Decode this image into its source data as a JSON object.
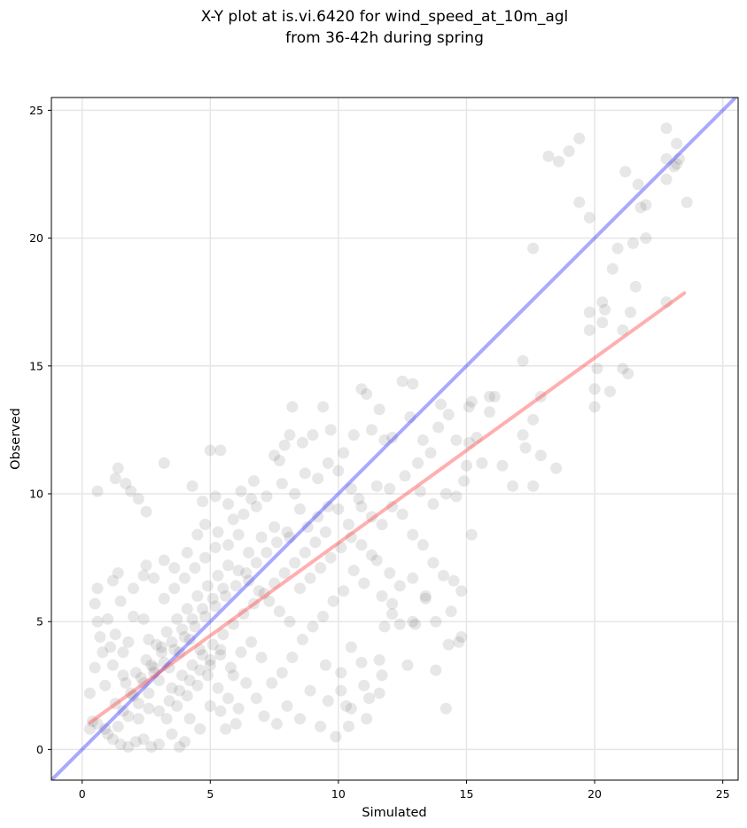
{
  "chart_data": {
    "type": "scatter",
    "title_line1": "X-Y plot at is.vi.6420 for wind_speed_at_10m_agl",
    "title_line2": "from 36-42h during spring",
    "xlabel": "Simulated",
    "ylabel": "Observed",
    "xlim": [
      -1.2,
      25.6
    ],
    "ylim": [
      -1.2,
      25.5
    ],
    "xticks": [
      0,
      5,
      10,
      15,
      20,
      25
    ],
    "yticks": [
      0,
      5,
      10,
      15,
      20,
      25
    ],
    "grid": true,
    "point_color": "#555555",
    "identity_line_color": "#3333ff",
    "fit_line_color": "#ff4d4d",
    "identity_line": {
      "x": [
        -1.2,
        25.6
      ],
      "y": [
        -1.2,
        25.6
      ]
    },
    "fit_line": {
      "x": [
        0.3,
        23.5
      ],
      "y": [
        1.05,
        17.85
      ]
    },
    "points": [
      [
        0.6,
        10.1
      ],
      [
        1.3,
        10.6
      ],
      [
        1.4,
        11.0
      ],
      [
        1.7,
        10.4
      ],
      [
        1.9,
        10.1
      ],
      [
        2.2,
        9.8
      ],
      [
        2.5,
        9.3
      ],
      [
        3.2,
        11.2
      ],
      [
        4.3,
        10.3
      ],
      [
        4.7,
        9.7
      ],
      [
        5.0,
        11.7
      ],
      [
        5.4,
        11.7
      ],
      [
        5.2,
        9.9
      ],
      [
        5.7,
        9.6
      ],
      [
        6.2,
        10.1
      ],
      [
        6.6,
        9.8
      ],
      [
        7.5,
        11.5
      ],
      [
        7.7,
        11.3
      ],
      [
        7.9,
        11.9
      ],
      [
        8.1,
        12.3
      ],
      [
        8.6,
        12.0
      ],
      [
        8.2,
        13.4
      ],
      [
        9.0,
        12.3
      ],
      [
        9.4,
        13.4
      ],
      [
        9.7,
        12.5
      ],
      [
        10.2,
        11.6
      ],
      [
        10.6,
        12.3
      ],
      [
        10.9,
        14.1
      ],
      [
        11.1,
        13.9
      ],
      [
        11.3,
        12.5
      ],
      [
        11.6,
        13.3
      ],
      [
        11.8,
        12.1
      ],
      [
        12.1,
        12.2
      ],
      [
        12.5,
        14.4
      ],
      [
        12.9,
        14.3
      ],
      [
        12.8,
        13.0
      ],
      [
        13.3,
        12.1
      ],
      [
        13.9,
        12.6
      ],
      [
        14.0,
        13.5
      ],
      [
        14.3,
        13.1
      ],
      [
        14.6,
        12.1
      ],
      [
        15.1,
        13.4
      ],
      [
        15.2,
        13.6
      ],
      [
        15.4,
        12.2
      ],
      [
        15.1,
        12.0
      ],
      [
        15.0,
        11.1
      ],
      [
        15.6,
        11.2
      ],
      [
        15.9,
        13.8
      ],
      [
        16.1,
        13.8
      ],
      [
        15.9,
        13.2
      ],
      [
        16.4,
        11.1
      ],
      [
        16.8,
        10.3
      ],
      [
        17.2,
        12.3
      ],
      [
        17.3,
        11.8
      ],
      [
        17.6,
        12.9
      ],
      [
        17.6,
        10.3
      ],
      [
        17.9,
        11.5
      ],
      [
        18.5,
        11.0
      ],
      [
        17.9,
        13.8
      ],
      [
        17.2,
        15.2
      ],
      [
        17.6,
        19.6
      ],
      [
        18.2,
        23.2
      ],
      [
        18.6,
        23.0
      ],
      [
        19.0,
        23.4
      ],
      [
        19.4,
        23.9
      ],
      [
        19.4,
        21.4
      ],
      [
        19.8,
        20.8
      ],
      [
        19.8,
        17.1
      ],
      [
        19.8,
        16.4
      ],
      [
        20.0,
        14.1
      ],
      [
        20.0,
        13.4
      ],
      [
        20.1,
        14.9
      ],
      [
        20.3,
        16.7
      ],
      [
        20.3,
        17.5
      ],
      [
        20.4,
        17.2
      ],
      [
        20.6,
        14.0
      ],
      [
        20.7,
        18.8
      ],
      [
        20.9,
        19.6
      ],
      [
        21.1,
        16.4
      ],
      [
        21.1,
        14.9
      ],
      [
        21.3,
        14.7
      ],
      [
        21.2,
        22.6
      ],
      [
        21.4,
        17.1
      ],
      [
        21.5,
        19.8
      ],
      [
        21.6,
        18.1
      ],
      [
        21.7,
        22.1
      ],
      [
        21.8,
        21.2
      ],
      [
        22.0,
        20.0
      ],
      [
        22.0,
        21.3
      ],
      [
        22.8,
        24.3
      ],
      [
        22.8,
        23.1
      ],
      [
        22.8,
        22.3
      ],
      [
        23.2,
        23.7
      ],
      [
        23.1,
        22.8
      ],
      [
        23.3,
        23.1
      ],
      [
        23.2,
        22.9
      ],
      [
        23.6,
        21.4
      ],
      [
        22.8,
        17.5
      ],
      [
        15.2,
        8.4
      ],
      [
        14.8,
        6.2
      ],
      [
        14.8,
        4.4
      ],
      [
        14.7,
        4.2
      ],
      [
        14.3,
        4.1
      ],
      [
        14.2,
        1.6
      ],
      [
        14.4,
        5.4
      ],
      [
        13.8,
        3.1
      ],
      [
        13.8,
        5.0
      ],
      [
        13.4,
        5.9
      ],
      [
        13.0,
        4.9
      ],
      [
        12.9,
        5.0
      ],
      [
        12.4,
        4.9
      ],
      [
        12.7,
        3.3
      ],
      [
        12.1,
        5.3
      ],
      [
        11.8,
        4.8
      ],
      [
        11.6,
        3.5
      ],
      [
        11.7,
        2.9
      ],
      [
        11.6,
        2.2
      ],
      [
        11.2,
        2.0
      ],
      [
        11.1,
        1.2
      ],
      [
        11.0,
        2.5
      ],
      [
        10.9,
        3.4
      ],
      [
        10.5,
        1.6
      ],
      [
        10.3,
        1.7
      ],
      [
        10.1,
        2.3
      ],
      [
        9.9,
        0.5
      ],
      [
        10.4,
        0.9
      ],
      [
        10.1,
        3.0
      ],
      [
        10.5,
        4.0
      ],
      [
        9.6,
        1.9
      ],
      [
        9.5,
        3.3
      ],
      [
        9.3,
        0.9
      ],
      [
        8.9,
        2.3
      ],
      [
        8.5,
        1.2
      ],
      [
        8.0,
        1.7
      ],
      [
        7.6,
        1.0
      ],
      [
        7.1,
        1.3
      ],
      [
        6.8,
        2.0
      ],
      [
        6.4,
        2.6
      ],
      [
        6.0,
        1.0
      ],
      [
        5.6,
        0.8
      ],
      [
        5.9,
        2.9
      ],
      [
        5.4,
        1.5
      ],
      [
        5.0,
        1.7
      ],
      [
        4.6,
        0.8
      ],
      [
        4.2,
        1.2
      ],
      [
        4.0,
        0.3
      ],
      [
        3.8,
        0.1
      ],
      [
        3.5,
        0.6
      ],
      [
        3.0,
        0.2
      ],
      [
        2.7,
        0.1
      ],
      [
        2.4,
        0.4
      ],
      [
        2.1,
        0.3
      ],
      [
        1.8,
        0.1
      ],
      [
        1.5,
        0.2
      ],
      [
        1.2,
        0.4
      ],
      [
        0.9,
        0.8
      ],
      [
        0.6,
        1.0
      ],
      [
        0.3,
        0.8
      ],
      [
        0.4,
        1.1
      ],
      [
        0.3,
        2.2
      ],
      [
        0.5,
        3.2
      ],
      [
        0.7,
        4.4
      ],
      [
        0.6,
        5.0
      ],
      [
        0.5,
        5.7
      ],
      [
        0.6,
        6.3
      ],
      [
        1.2,
        6.6
      ],
      [
        1.4,
        6.9
      ],
      [
        1.5,
        5.8
      ],
      [
        1.3,
        4.5
      ],
      [
        1.0,
        5.1
      ],
      [
        1.6,
        3.8
      ],
      [
        1.8,
        4.2
      ],
      [
        2.0,
        5.2
      ],
      [
        2.4,
        5.1
      ],
      [
        2.6,
        4.3
      ],
      [
        2.8,
        3.2
      ],
      [
        3.1,
        4.0
      ],
      [
        2.5,
        7.2
      ],
      [
        2.8,
        6.7
      ],
      [
        3.2,
        7.4
      ],
      [
        3.6,
        7.1
      ],
      [
        4.1,
        7.7
      ],
      [
        4.5,
        8.4
      ],
      [
        4.8,
        8.8
      ],
      [
        5.3,
        8.5
      ],
      [
        5.7,
        8.0
      ],
      [
        6.1,
        8.4
      ],
      [
        6.5,
        7.7
      ],
      [
        7.0,
        8.3
      ],
      [
        7.5,
        8.7
      ],
      [
        8.1,
        8.3
      ],
      [
        8.5,
        9.4
      ],
      [
        8.8,
        8.7
      ],
      [
        9.2,
        9.1
      ],
      [
        9.6,
        9.5
      ],
      [
        10.0,
        9.4
      ],
      [
        10.4,
        8.8
      ],
      [
        10.9,
        9.5
      ],
      [
        11.3,
        9.1
      ],
      [
        11.7,
        8.8
      ],
      [
        12.1,
        9.5
      ],
      [
        12.5,
        9.2
      ],
      [
        12.9,
        8.4
      ],
      [
        13.3,
        8.0
      ],
      [
        13.7,
        7.3
      ],
      [
        14.1,
        6.8
      ],
      [
        14.5,
        6.6
      ],
      [
        13.4,
        6.0
      ],
      [
        12.9,
        6.7
      ],
      [
        12.4,
        6.4
      ],
      [
        12.0,
        6.9
      ],
      [
        11.5,
        7.4
      ],
      [
        11.0,
        6.5
      ],
      [
        10.6,
        7.0
      ],
      [
        10.2,
        6.2
      ],
      [
        9.8,
        5.8
      ],
      [
        9.4,
        5.2
      ],
      [
        9.0,
        4.8
      ],
      [
        8.6,
        4.3
      ],
      [
        8.2,
        3.6
      ],
      [
        7.8,
        3.0
      ],
      [
        7.4,
        2.6
      ],
      [
        7.0,
        3.6
      ],
      [
        6.6,
        4.2
      ],
      [
        6.2,
        3.8
      ],
      [
        5.8,
        3.2
      ],
      [
        5.4,
        3.7
      ],
      [
        5.0,
        3.3
      ],
      [
        4.6,
        3.9
      ],
      [
        4.2,
        4.3
      ],
      [
        3.8,
        3.8
      ],
      [
        3.4,
        3.2
      ],
      [
        3.0,
        2.7
      ],
      [
        2.6,
        2.2
      ],
      [
        2.2,
        1.8
      ],
      [
        1.8,
        1.3
      ],
      [
        1.4,
        0.9
      ],
      [
        1.0,
        0.6
      ],
      [
        1.3,
        1.8
      ],
      [
        1.7,
        2.6
      ],
      [
        2.1,
        3.0
      ],
      [
        2.5,
        3.5
      ],
      [
        2.9,
        4.1
      ],
      [
        3.3,
        4.6
      ],
      [
        3.7,
        5.1
      ],
      [
        4.1,
        5.5
      ],
      [
        4.5,
        6.0
      ],
      [
        4.9,
        6.4
      ],
      [
        5.3,
        6.8
      ],
      [
        5.7,
        7.2
      ],
      [
        6.1,
        7.0
      ],
      [
        6.5,
        6.6
      ],
      [
        6.9,
        6.2
      ],
      [
        7.3,
        5.8
      ],
      [
        7.7,
        5.4
      ],
      [
        8.1,
        5.0
      ],
      [
        8.5,
        6.3
      ],
      [
        8.9,
        6.7
      ],
      [
        9.3,
        7.1
      ],
      [
        9.7,
        7.5
      ],
      [
        10.1,
        7.9
      ],
      [
        10.5,
        8.3
      ],
      [
        10.9,
        8.0
      ],
      [
        11.3,
        7.6
      ],
      [
        11.7,
        6.0
      ],
      [
        12.1,
        5.7
      ],
      [
        3.3,
        1.2
      ],
      [
        3.7,
        1.7
      ],
      [
        4.1,
        2.1
      ],
      [
        4.5,
        2.5
      ],
      [
        4.9,
        2.9
      ],
      [
        5.3,
        2.4
      ],
      [
        5.7,
        2.0
      ],
      [
        6.1,
        1.6
      ],
      [
        3.5,
        2.4
      ],
      [
        3.9,
        2.9
      ],
      [
        4.3,
        3.3
      ],
      [
        4.7,
        3.7
      ],
      [
        5.1,
        4.1
      ],
      [
        5.5,
        4.5
      ],
      [
        5.9,
        4.9
      ],
      [
        6.3,
        5.3
      ],
      [
        6.7,
        5.7
      ],
      [
        7.1,
        6.1
      ],
      [
        7.5,
        6.5
      ],
      [
        7.9,
        6.9
      ],
      [
        8.3,
        7.3
      ],
      [
        8.7,
        7.7
      ],
      [
        9.1,
        8.1
      ],
      [
        9.5,
        8.5
      ],
      [
        2.0,
        2.1
      ],
      [
        2.4,
        2.6
      ],
      [
        2.8,
        3.0
      ],
      [
        3.2,
        3.4
      ],
      [
        3.6,
        3.9
      ],
      [
        4.0,
        4.4
      ],
      [
        4.4,
        4.8
      ],
      [
        4.8,
        5.2
      ],
      [
        5.2,
        5.6
      ],
      [
        5.6,
        6.0
      ],
      [
        6.0,
        6.4
      ],
      [
        6.4,
        6.9
      ],
      [
        6.8,
        7.3
      ],
      [
        7.2,
        7.7
      ],
      [
        7.6,
        8.1
      ],
      [
        8.0,
        8.5
      ],
      [
        3.0,
        1.5
      ],
      [
        3.4,
        1.9
      ],
      [
        3.8,
        2.3
      ],
      [
        4.2,
        2.7
      ],
      [
        4.6,
        3.1
      ],
      [
        5.0,
        3.5
      ],
      [
        5.4,
        3.9
      ],
      [
        2.2,
        1.2
      ],
      [
        2.6,
        1.6
      ],
      [
        1.6,
        1.5
      ],
      [
        1.9,
        2.2
      ],
      [
        2.3,
        2.8
      ],
      [
        2.7,
        3.3
      ],
      [
        3.1,
        3.8
      ],
      [
        3.5,
        4.2
      ],
      [
        3.9,
        4.7
      ],
      [
        4.3,
        5.1
      ],
      [
        4.7,
        5.5
      ],
      [
        5.1,
        5.9
      ],
      [
        5.5,
        6.3
      ],
      [
        3.2,
        5.9
      ],
      [
        3.6,
        6.3
      ],
      [
        4.0,
        6.7
      ],
      [
        4.4,
        7.1
      ],
      [
        4.8,
        7.5
      ],
      [
        5.2,
        7.9
      ],
      [
        2.0,
        6.3
      ],
      [
        2.4,
        6.8
      ],
      [
        1.2,
        3.3
      ],
      [
        1.6,
        2.9
      ],
      [
        0.9,
        2.5
      ],
      [
        0.8,
        3.8
      ],
      [
        1.1,
        4.0
      ],
      [
        7.8,
        10.4
      ],
      [
        8.3,
        10.0
      ],
      [
        8.7,
        10.8
      ],
      [
        9.2,
        10.6
      ],
      [
        9.6,
        11.2
      ],
      [
        10.0,
        10.9
      ],
      [
        10.5,
        10.2
      ],
      [
        10.8,
        9.8
      ],
      [
        7.2,
        9.9
      ],
      [
        6.8,
        9.5
      ],
      [
        6.3,
        9.2
      ],
      [
        5.9,
        9.0
      ],
      [
        6.7,
        10.5
      ],
      [
        11.5,
        10.3
      ],
      [
        12.0,
        10.2
      ],
      [
        12.6,
        10.7
      ],
      [
        13.1,
        11.2
      ],
      [
        13.6,
        11.6
      ],
      [
        13.2,
        10.1
      ],
      [
        13.7,
        9.6
      ],
      [
        14.2,
        10.0
      ],
      [
        14.6,
        9.9
      ],
      [
        14.9,
        10.5
      ]
    ]
  }
}
